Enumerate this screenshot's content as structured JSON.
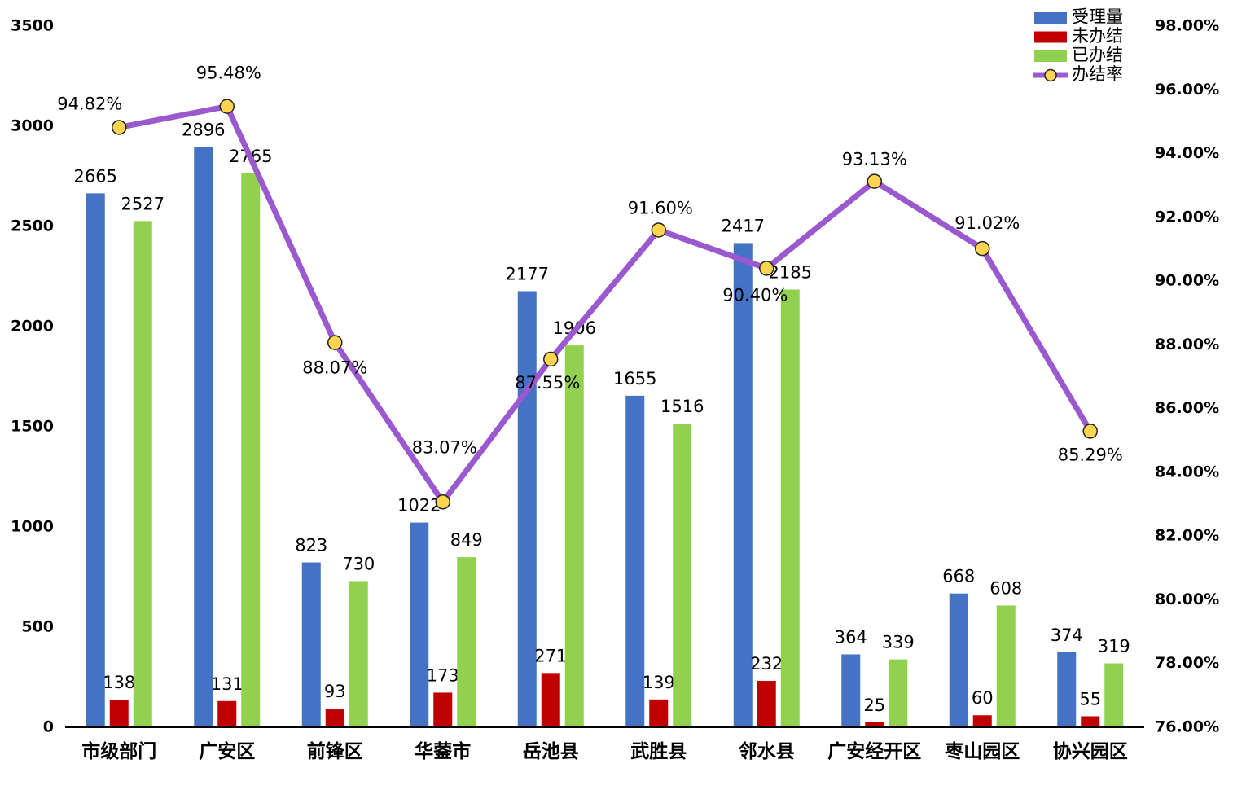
{
  "chart_data": {
    "type": "bar-line",
    "categories": [
      "市级部门",
      "广安区",
      "前锋区",
      "华蓥市",
      "岳池县",
      "武胜县",
      "邻水县",
      "广安经开区",
      "枣山园区",
      "协兴园区"
    ],
    "series": [
      {
        "name": "受理量",
        "type": "bar",
        "color": "#4472c4",
        "values": [
          2665,
          2896,
          823,
          1022,
          2177,
          1655,
          2417,
          364,
          668,
          374
        ]
      },
      {
        "name": "未办结",
        "type": "bar",
        "color": "#c00000",
        "values": [
          138,
          131,
          93,
          173,
          271,
          139,
          232,
          25,
          60,
          55
        ]
      },
      {
        "name": "已办结",
        "type": "bar",
        "color": "#92d050",
        "values": [
          2527,
          2765,
          730,
          849,
          1906,
          1516,
          2185,
          339,
          608,
          319
        ]
      },
      {
        "name": "办结率",
        "type": "line",
        "axis": "y2",
        "color": "#9b59d0",
        "marker_color": "#ffd54f",
        "values": [
          94.82,
          95.48,
          88.07,
          83.07,
          87.55,
          91.6,
          90.4,
          93.13,
          91.02,
          85.29
        ],
        "value_labels": [
          "94.82%",
          "95.48%",
          "88.07%",
          "83.07%",
          "87.55%",
          "91.60%",
          "90.40%",
          "93.13%",
          "91.02%",
          "85.29%"
        ]
      }
    ],
    "ylim": [
      0,
      3500
    ],
    "yticks": [
      0,
      500,
      1000,
      1500,
      2000,
      2500,
      3000,
      3500
    ],
    "y2lim": [
      76,
      98
    ],
    "y2ticks": [
      {
        "value": 76,
        "label": "76.00%"
      },
      {
        "value": 78,
        "label": "78.00%"
      },
      {
        "value": 80,
        "label": "80.00%"
      },
      {
        "value": 82,
        "label": "82.00%"
      },
      {
        "value": 84,
        "label": "84.00%"
      },
      {
        "value": 86,
        "label": "86.00%"
      },
      {
        "value": 88,
        "label": "88.00%"
      },
      {
        "value": 90,
        "label": "90.00%"
      },
      {
        "value": 92,
        "label": "92.00%"
      },
      {
        "value": 94,
        "label": "94.00%"
      },
      {
        "value": 96,
        "label": "96.00%"
      },
      {
        "value": 98,
        "label": "98.00%"
      }
    ],
    "grid": false,
    "legend": "top-right"
  }
}
